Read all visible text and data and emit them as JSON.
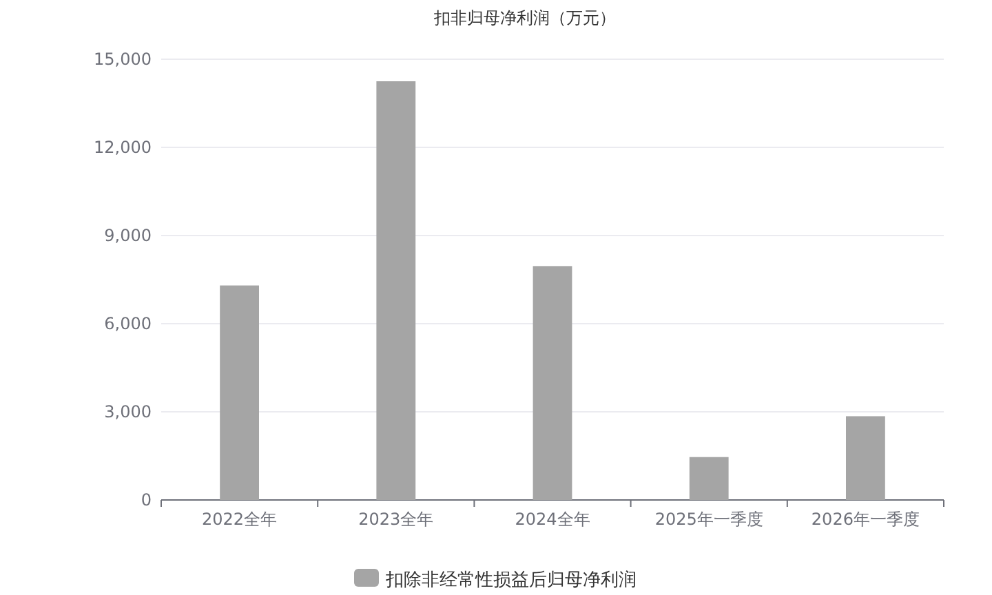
{
  "chart_data": {
    "type": "bar",
    "title": "扣非归母净利润（万元）",
    "categories": [
      "2022全年",
      "2023全年",
      "2024全年",
      "2025年一季度",
      "2026年一季度"
    ],
    "series": [
      {
        "name": "扣除非经常性损益后归母净利润",
        "color": "#a5a5a5",
        "values": [
          7300,
          14250,
          7960,
          1460,
          2850
        ]
      }
    ],
    "ylim": [
      0,
      15000
    ],
    "yticks": [
      {
        "value": 0,
        "label": "0"
      },
      {
        "value": 3000,
        "label": "3,000"
      },
      {
        "value": 6000,
        "label": "6,000"
      },
      {
        "value": 9000,
        "label": "9,000"
      },
      {
        "value": 12000,
        "label": "12,000"
      },
      {
        "value": 15000,
        "label": "15,000"
      }
    ],
    "grid": "y",
    "legend": "bottom"
  }
}
